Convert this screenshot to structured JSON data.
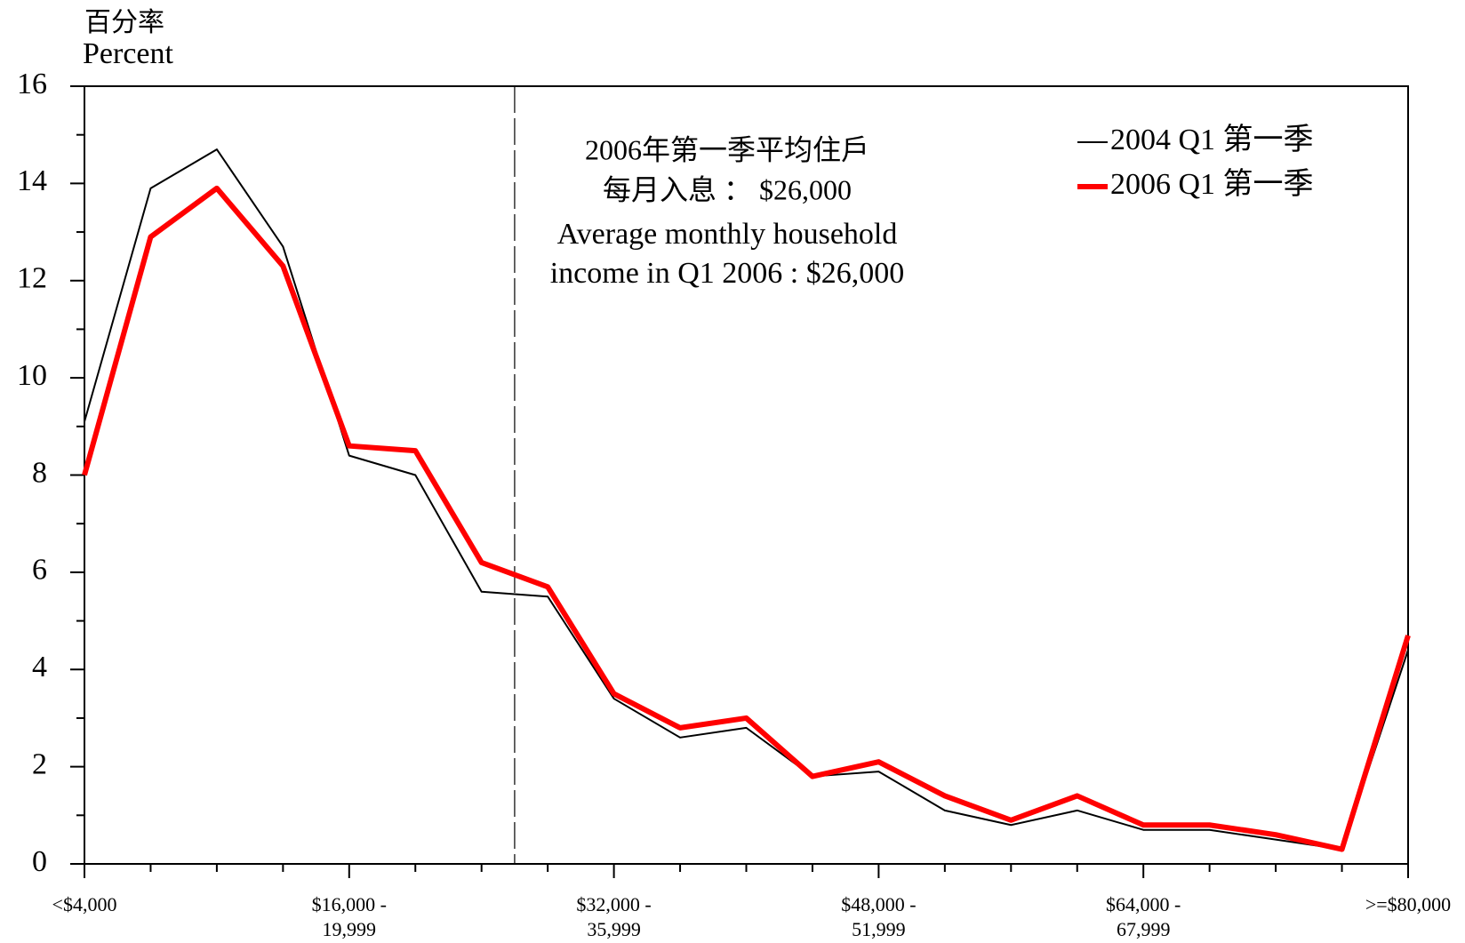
{
  "chart_data": {
    "type": "line",
    "y_label": [
      "百分率",
      "Percent"
    ],
    "annotations": [
      "2006年第一季平均住戶",
      "每月入息 ： $26,000",
      "Average monthly household",
      "income in  Q1 2006 : $26,000"
    ],
    "categories": [
      "<$4,000",
      null,
      null,
      null,
      "$16,000 -\n19,999",
      null,
      null,
      null,
      "$32,000 -\n35,999",
      null,
      null,
      null,
      "$48,000 -\n51,999",
      null,
      null,
      null,
      "$64,000 -\n67,999",
      null,
      null,
      null,
      ">=$80,000"
    ],
    "series": [
      {
        "name": "2004 Q1 第一季",
        "color": "#000000",
        "width": 2,
        "values": [
          9.1,
          13.9,
          14.7,
          12.7,
          8.4,
          8.0,
          5.6,
          5.5,
          3.4,
          2.6,
          2.8,
          1.8,
          1.9,
          1.1,
          0.8,
          1.1,
          0.7,
          0.7,
          0.5,
          0.3,
          4.4
        ]
      },
      {
        "name": "2006 Q1 第一季",
        "color": "#ff0000",
        "width": 6,
        "values": [
          8.0,
          12.9,
          13.9,
          12.3,
          8.6,
          8.5,
          6.2,
          5.7,
          3.5,
          2.8,
          3.0,
          1.8,
          2.1,
          1.4,
          0.9,
          1.4,
          0.8,
          0.8,
          0.6,
          0.3,
          4.7
        ]
      }
    ],
    "ylim": [
      0,
      16
    ],
    "yticks": [
      0,
      2,
      4,
      6,
      8,
      10,
      12,
      14,
      16
    ],
    "legend": "top-right"
  }
}
